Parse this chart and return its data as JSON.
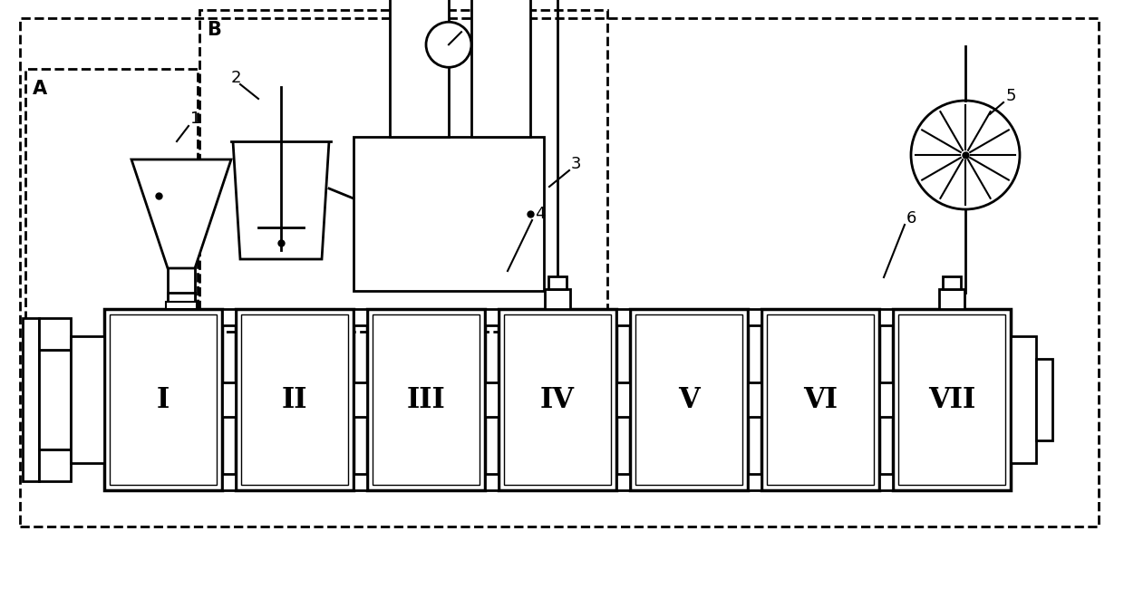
{
  "bg_color": "#ffffff",
  "line_color": "#000000",
  "fig_width": 12.4,
  "fig_height": 6.61,
  "dpi": 100,
  "roman_labels": [
    "I",
    "II",
    "III",
    "IV",
    "V",
    "VI",
    "VII"
  ]
}
